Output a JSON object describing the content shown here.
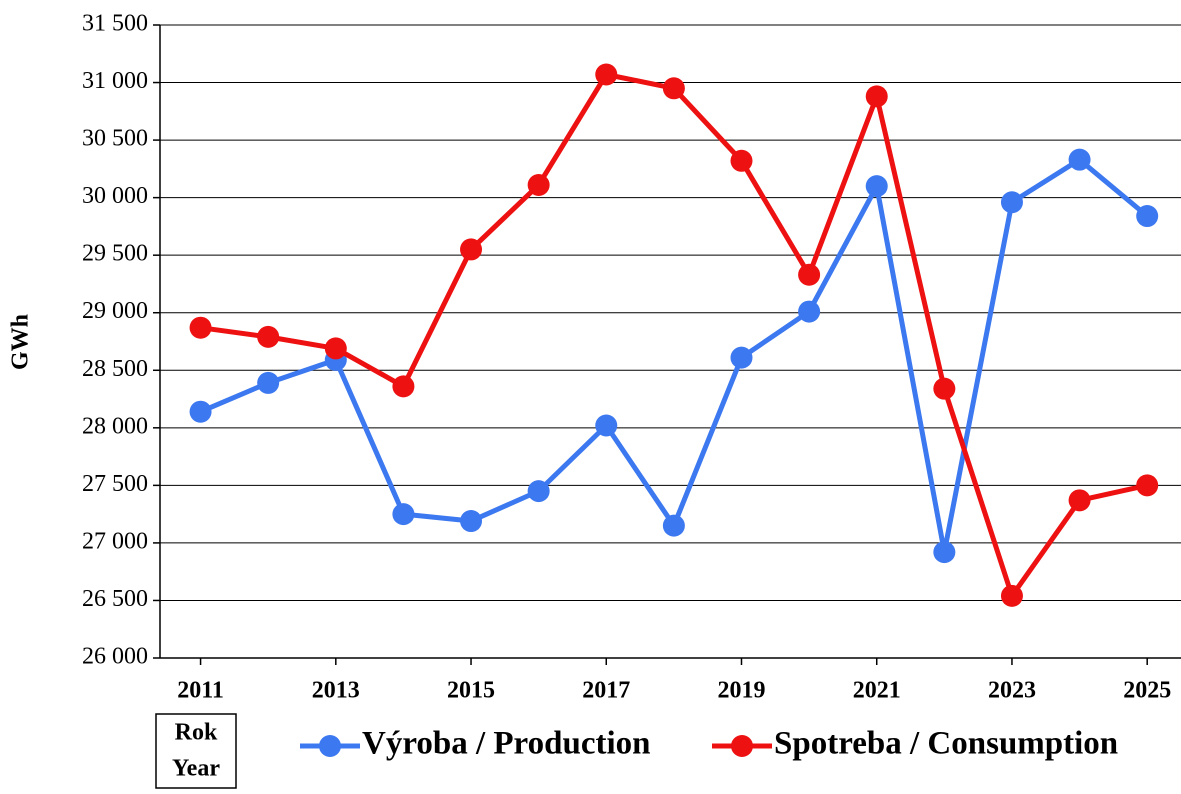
{
  "chart_data": {
    "type": "line",
    "ylabel": "GWh",
    "xlabel": [
      "Rok",
      "Year"
    ],
    "x": [
      2011,
      2012,
      2013,
      2014,
      2015,
      2016,
      2017,
      2018,
      2019,
      2020,
      2021,
      2022,
      2023,
      2024,
      2025
    ],
    "series": [
      {
        "name": "Výroba / Production",
        "color": "#3c78f0",
        "values": [
          28140,
          28390,
          28590,
          27250,
          27190,
          27450,
          28020,
          27150,
          28610,
          29010,
          30100,
          26920,
          29960,
          30330,
          29840
        ]
      },
      {
        "name": "Spotreba / Consumption",
        "color": "#ee1111",
        "values": [
          28870,
          28790,
          28690,
          28360,
          29550,
          30110,
          31070,
          30950,
          30320,
          29330,
          30880,
          28340,
          26540,
          27370,
          27500
        ]
      }
    ],
    "xlim": [
      2010.4,
      2025.5
    ],
    "xticks": [
      2011,
      2013,
      2015,
      2017,
      2019,
      2021,
      2023,
      2025
    ],
    "ylim": [
      26000,
      31500
    ],
    "yticks": [
      {
        "value": 26000,
        "label": "26 000"
      },
      {
        "value": 26500,
        "label": "26 500"
      },
      {
        "value": 27000,
        "label": "27 000"
      },
      {
        "value": 27500,
        "label": "27 500"
      },
      {
        "value": 28000,
        "label": "28 000"
      },
      {
        "value": 28500,
        "label": "28 500"
      },
      {
        "value": 29000,
        "label": "29 000"
      },
      {
        "value": 29500,
        "label": "29 500"
      },
      {
        "value": 30000,
        "label": "30 000"
      },
      {
        "value": 30500,
        "label": "30 500"
      },
      {
        "value": 31000,
        "label": "31 000"
      },
      {
        "value": 31500,
        "label": "31 500"
      }
    ],
    "grid": true,
    "legend": "bottom"
  }
}
